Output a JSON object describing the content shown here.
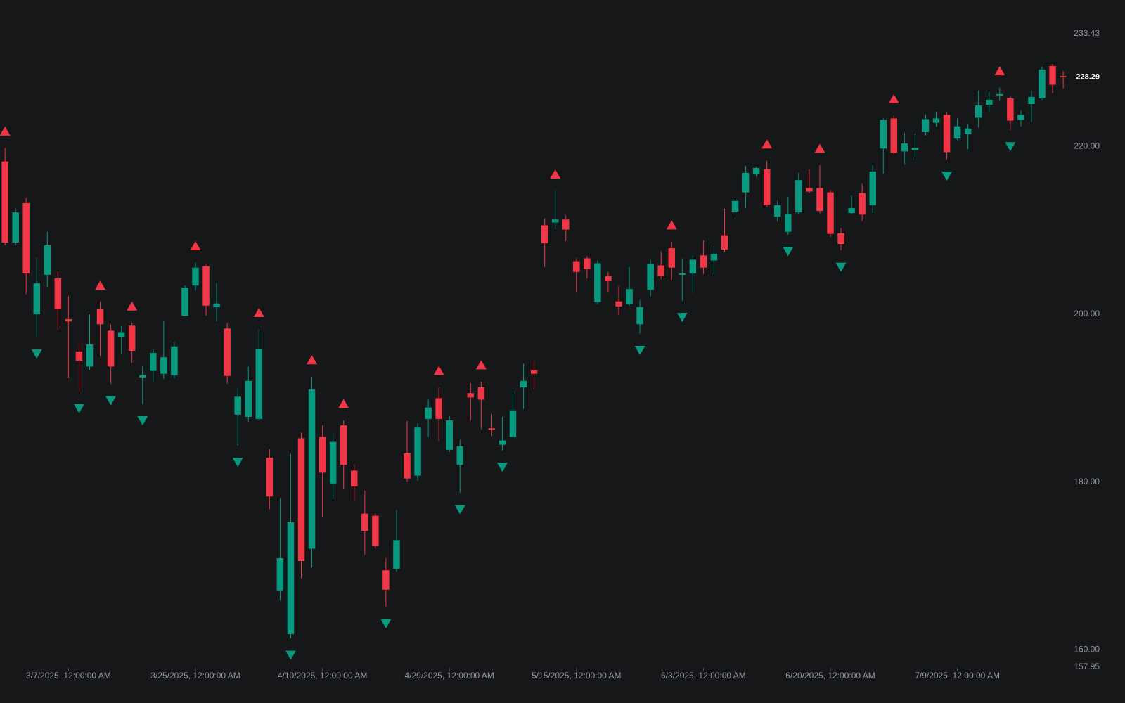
{
  "chart_data": {
    "type": "candlestick",
    "categories": [
      null,
      null,
      null,
      null,
      null,
      null,
      "3/7/2025, 12:00:00 AM",
      null,
      null,
      null,
      null,
      null,
      null,
      null,
      null,
      null,
      null,
      null,
      "3/25/2025, 12:00:00 AM",
      null,
      null,
      null,
      null,
      null,
      null,
      null,
      null,
      null,
      null,
      null,
      "4/10/2025, 12:00:00 AM",
      null,
      null,
      null,
      null,
      null,
      null,
      null,
      null,
      null,
      null,
      null,
      "4/29/2025, 12:00:00 AM",
      null,
      null,
      null,
      null,
      null,
      null,
      null,
      null,
      null,
      null,
      null,
      "5/15/2025, 12:00:00 AM",
      null,
      null,
      null,
      null,
      null,
      null,
      null,
      null,
      null,
      null,
      null,
      "6/3/2025, 12:00:00 AM",
      null,
      null,
      null,
      null,
      null,
      null,
      null,
      null,
      null,
      null,
      null,
      "6/20/2025, 12:00:00 AM",
      null,
      null,
      null,
      null,
      null,
      null,
      null,
      null,
      null,
      null,
      null,
      "7/9/2025, 12:00:00 AM",
      null,
      null,
      null,
      null,
      null,
      null,
      null,
      null,
      null,
      null
    ],
    "open": [
      218.21,
      208.55,
      213.25,
      200.0,
      204.71,
      204.28,
      199.41,
      195.56,
      193.77,
      200.6,
      198.04,
      197.27,
      198.64,
      192.48,
      193.25,
      192.91,
      192.74,
      199.83,
      203.42,
      205.73,
      200.86,
      198.3,
      188.04,
      187.78,
      187.53,
      182.91,
      167.1,
      161.88,
      185.22,
      172.06,
      185.39,
      179.83,
      186.76,
      181.37,
      176.24,
      175.99,
      169.49,
      169.66,
      183.42,
      180.77,
      187.53,
      190.0,
      183.85,
      182.06,
      190.6,
      191.29,
      186.41,
      184.45,
      185.39,
      191.29,
      193.34,
      210.6,
      210.94,
      211.29,
      206.33,
      206.67,
      201.46,
      204.53,
      201.54,
      201.2,
      198.81,
      202.91,
      205.82,
      207.87,
      204.71,
      204.88,
      207.01,
      206.41,
      209.41,
      212.23,
      214.53,
      216.67,
      217.27,
      211.63,
      209.83,
      212.14,
      215.05,
      215.05,
      214.53,
      209.66,
      212.06,
      214.45,
      213.0,
      219.75,
      223.34,
      219.41,
      219.58,
      221.71,
      222.82,
      223.76,
      220.94,
      221.46,
      223.42,
      224.96,
      226.07,
      225.73,
      223.17,
      225.05,
      225.73,
      229.58,
      228.38
    ],
    "high": [
      219.83,
      212.65,
      213.85,
      206.67,
      209.83,
      205.13,
      202.14,
      196.59,
      200.0,
      201.46,
      198.81,
      198.55,
      198.98,
      193.85,
      195.82,
      199.24,
      196.67,
      203.42,
      206.16,
      205.9,
      203.68,
      198.98,
      191.2,
      193.77,
      198.21,
      183.94,
      178.04,
      183.34,
      185.9,
      192.57,
      186.76,
      185.82,
      187.35,
      182.14,
      178.98,
      176.24,
      170.94,
      176.67,
      187.27,
      187.01,
      189.83,
      191.29,
      187.87,
      185.05,
      191.8,
      191.97,
      188.12,
      187.78,
      190.86,
      194.11,
      194.53,
      211.46,
      214.71,
      211.8,
      206.67,
      206.93,
      206.41,
      205.05,
      203.34,
      205.65,
      201.71,
      206.5,
      207.53,
      208.64,
      206.67,
      207.01,
      208.81,
      208.12,
      212.57,
      213.76,
      217.7,
      217.61,
      218.29,
      213.51,
      214.02,
      216.84,
      217.27,
      217.78,
      214.79,
      210.26,
      214.11,
      215.56,
      217.78,
      223.34,
      223.68,
      221.63,
      221.54,
      223.85,
      224.11,
      224.02,
      223.34,
      222.65,
      226.67,
      226.5,
      227.01,
      225.99,
      224.28,
      226.67,
      229.49,
      229.83,
      228.98
    ],
    "low": [
      208.21,
      208.21,
      202.4,
      197.27,
      203.25,
      198.12,
      192.4,
      190.77,
      193.34,
      195.05,
      191.71,
      195.22,
      194.19,
      189.32,
      191.89,
      192.31,
      192.4,
      199.83,
      202.82,
      199.83,
      199.15,
      191.71,
      184.36,
      187.18,
      187.35,
      176.76,
      165.9,
      161.37,
      168.55,
      169.83,
      175.82,
      177.95,
      179.15,
      177.78,
      171.37,
      172.14,
      165.13,
      169.32,
      180.0,
      180.18,
      185.39,
      184.88,
      183.59,
      178.72,
      187.35,
      186.33,
      185.47,
      183.77,
      185.22,
      188.72,
      191.03,
      205.65,
      210.09,
      208.72,
      202.57,
      204.28,
      201.2,
      202.57,
      199.92,
      201.03,
      197.7,
      202.14,
      204.19,
      204.11,
      201.63,
      202.57,
      204.79,
      204.79,
      207.44,
      211.8,
      212.65,
      216.41,
      212.82,
      211.03,
      209.49,
      211.97,
      214.45,
      212.06,
      209.23,
      207.61,
      211.97,
      211.12,
      212.06,
      216.76,
      219.06,
      217.87,
      218.38,
      221.29,
      222.4,
      218.47,
      220.77,
      219.66,
      222.23,
      224.02,
      225.47,
      221.97,
      222.4,
      222.91,
      225.56,
      226.33,
      226.93
    ],
    "close": [
      208.55,
      212.14,
      204.88,
      203.68,
      208.21,
      200.6,
      199.15,
      194.45,
      196.41,
      198.81,
      193.77,
      197.87,
      195.65,
      192.74,
      195.39,
      194.88,
      196.16,
      203.17,
      205.56,
      201.03,
      201.29,
      192.65,
      190.18,
      192.06,
      195.9,
      178.29,
      170.94,
      175.22,
      170.6,
      191.03,
      181.12,
      184.79,
      182.06,
      179.49,
      174.19,
      172.4,
      167.18,
      173.08,
      180.43,
      186.5,
      188.89,
      187.53,
      187.35,
      184.28,
      190.09,
      189.83,
      186.24,
      184.96,
      188.55,
      192.06,
      192.91,
      208.47,
      211.29,
      210.09,
      205.05,
      205.39,
      206.07,
      203.94,
      200.94,
      203.0,
      200.86,
      205.99,
      204.53,
      205.56,
      204.88,
      206.5,
      205.56,
      207.18,
      207.7,
      213.51,
      216.84,
      217.44,
      213.0,
      213.0,
      211.97,
      215.99,
      214.62,
      212.31,
      209.58,
      208.38,
      212.65,
      211.88,
      217.01,
      223.17,
      219.23,
      220.35,
      219.83,
      223.25,
      223.34,
      219.32,
      222.4,
      222.14,
      224.88,
      225.56,
      226.24,
      223.08,
      223.76,
      225.9,
      229.15,
      227.35,
      228.29
    ],
    "fractal_highs": [
      0,
      9,
      12,
      18,
      24,
      29,
      32,
      41,
      45,
      52,
      63,
      72,
      77,
      84,
      94
    ],
    "fractal_lows": [
      3,
      7,
      10,
      13,
      22,
      27,
      36,
      43,
      47,
      60,
      64,
      74,
      79,
      89,
      95
    ],
    "up_color": "#089981",
    "down_color": "#f23645",
    "ylim": [
      157.95,
      233.43
    ],
    "yticks": [
      157.95,
      {
        "value": 160,
        "label": "160.00"
      },
      {
        "value": 180,
        "label": "180.00"
      },
      {
        "value": 200,
        "label": "200.00"
      },
      {
        "value": 220,
        "label": "220.00"
      },
      233.43
    ],
    "grid": false
  }
}
